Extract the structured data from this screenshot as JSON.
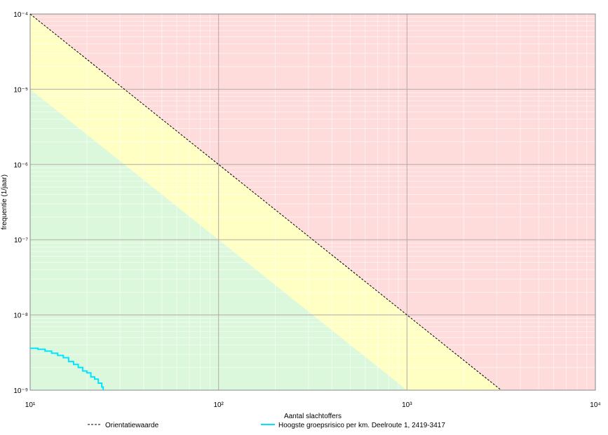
{
  "chart_data": {
    "type": "line",
    "xlabel": "Aantal slachtoffers",
    "ylabel": "frequentie (1/jaar)",
    "log_x": true,
    "log_y": true,
    "grid": true,
    "background": "#ffdcdc",
    "xlim": [
      10,
      10000
    ],
    "xticks": [
      {
        "value": 10,
        "label": "10¹"
      },
      {
        "value": 100,
        "label": "10²"
      },
      {
        "value": 1000,
        "label": "10³"
      },
      {
        "value": 10000,
        "label": "10⁴"
      }
    ],
    "ylim": [
      1e-09,
      0.0001
    ],
    "yticks": [
      {
        "value": 1e-09,
        "label": "10⁻⁹"
      },
      {
        "value": 1e-08,
        "label": "10⁻⁸"
      },
      {
        "value": 1e-07,
        "label": "10⁻⁷"
      },
      {
        "value": 1e-06,
        "label": "10⁻⁶"
      },
      {
        "value": 1e-05,
        "label": "10⁻⁵"
      },
      {
        "value": 0.0001,
        "label": "10⁻⁴"
      }
    ],
    "bands": [
      {
        "color": "#ffffc4",
        "x": [
          10,
          3162.28
        ],
        "values": [
          0.0001,
          1e-09
        ]
      },
      {
        "color": "#dcf8dc",
        "x": [
          10,
          1000
        ],
        "values": [
          1e-05,
          1e-09
        ]
      }
    ],
    "series": [
      {
        "name": "Orientatiewaarde",
        "color": "#000000",
        "dashed": true,
        "x": [
          10,
          3162.28
        ],
        "values": [
          0.0001,
          1e-09
        ]
      },
      {
        "name": "Hoogste groepsrisico per km. Deelroute 1, 2419-3417",
        "color": "#00e5ff",
        "step": true,
        "x": [
          10,
          11,
          12,
          13,
          14,
          15,
          16,
          17,
          18,
          19,
          20,
          21,
          22,
          23,
          24
        ],
        "values": [
          3.6e-09,
          3.5e-09,
          3.3e-09,
          3.1e-09,
          2.9e-09,
          2.7e-09,
          2.4e-09,
          2.2e-09,
          2e-09,
          1.8e-09,
          1.7e-09,
          1.5e-09,
          1.4e-09,
          1.24e-09,
          1.1e-09
        ]
      }
    ]
  }
}
